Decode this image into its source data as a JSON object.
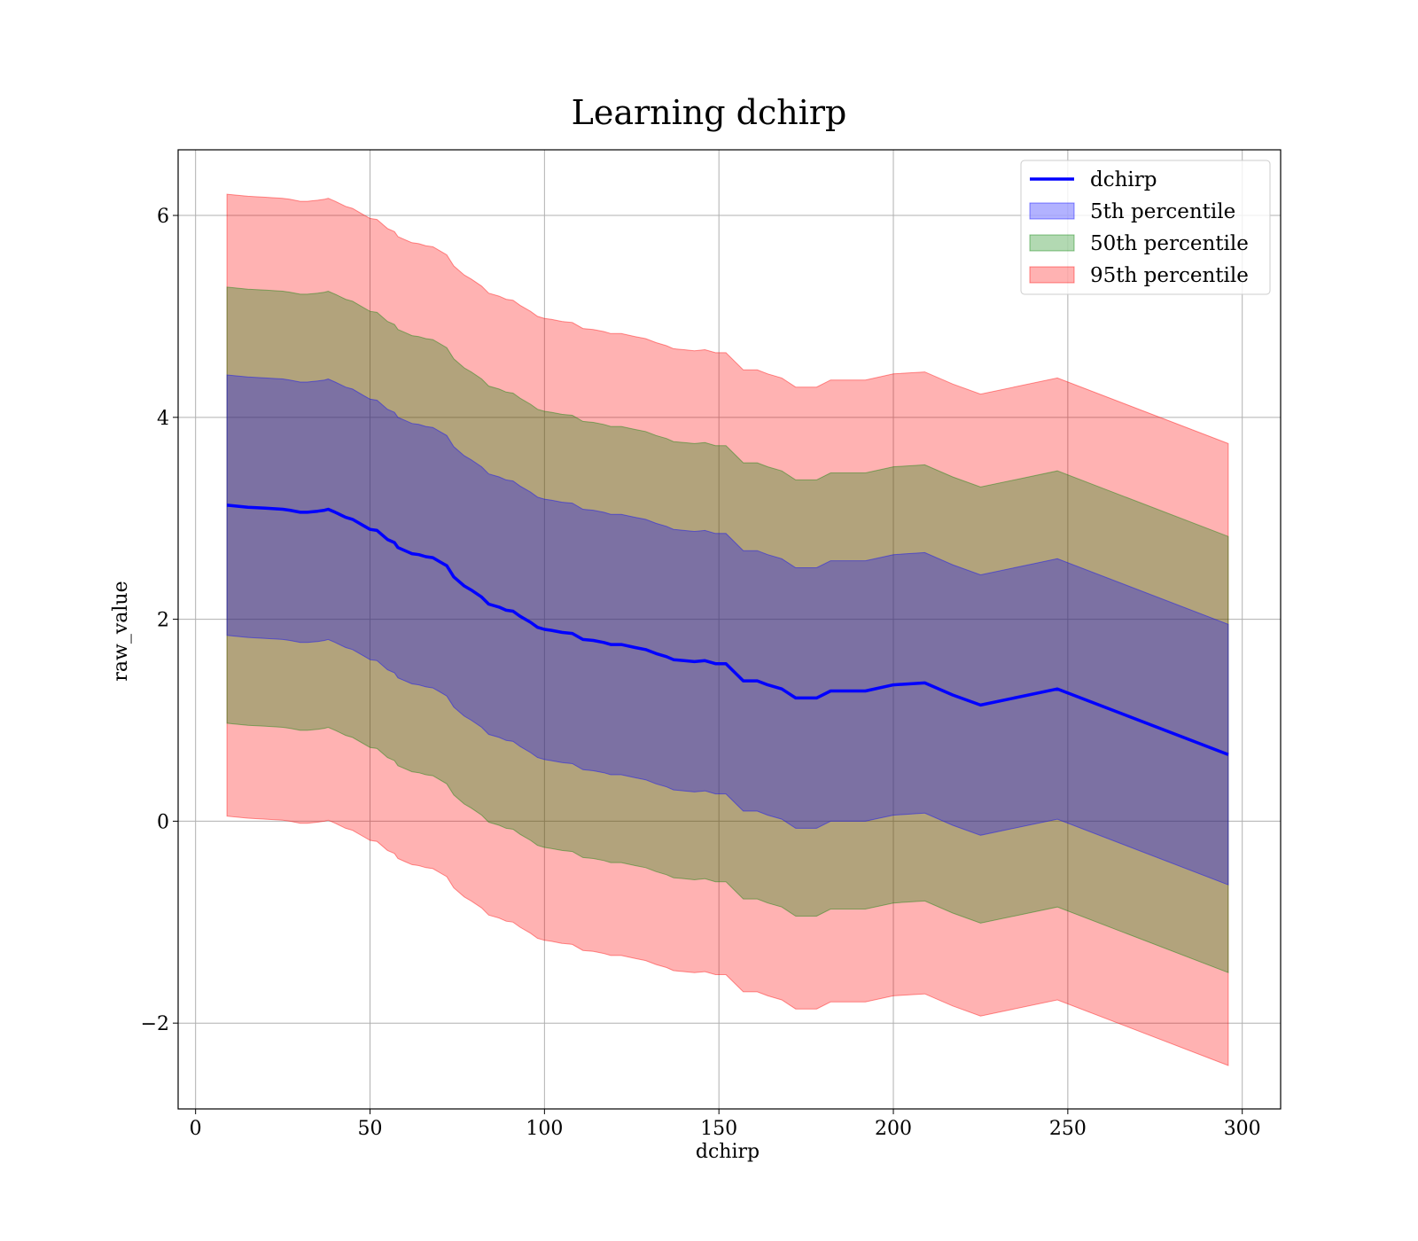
{
  "chart_data": {
    "type": "area",
    "title": "Learning dchirp",
    "xlabel": "dchirp",
    "ylabel": "raw_value",
    "xlim": [
      -5,
      311
    ],
    "ylim": [
      -2.85,
      6.65
    ],
    "x_ticks": [
      0,
      50,
      100,
      150,
      200,
      250,
      300
    ],
    "x_tick_labels": [
      "0",
      "50",
      "100",
      "150",
      "200",
      "250",
      "300"
    ],
    "y_ticks": [
      -2,
      0,
      2,
      4,
      6
    ],
    "y_tick_labels": [
      "−2",
      "0",
      "2",
      "4",
      "6"
    ],
    "grid": true,
    "legend": {
      "placement": "top-right",
      "entries": [
        {
          "label": "dchirp",
          "kind": "line",
          "color": "#0000ff"
        },
        {
          "label": "5th percentile",
          "kind": "patch",
          "color": "#0000ff"
        },
        {
          "label": "50th percentile",
          "kind": "patch",
          "color": "#008000"
        },
        {
          "label": "95th percentile",
          "kind": "patch",
          "color": "#ff0000"
        }
      ]
    },
    "x": [
      9,
      15,
      20,
      25,
      27,
      30,
      32,
      35,
      37,
      38,
      40,
      43,
      45,
      48,
      50,
      52,
      55,
      57,
      58,
      60,
      62,
      64,
      66,
      68,
      70,
      72,
      74,
      77,
      79,
      82,
      84,
      87,
      89,
      91,
      93,
      96,
      98,
      100,
      102,
      105,
      108,
      111,
      114,
      117,
      119,
      122,
      126,
      129,
      132,
      135,
      137,
      140,
      143,
      146,
      149,
      152,
      157,
      161,
      164,
      168,
      172,
      178,
      182,
      192,
      200,
      209,
      217,
      225,
      247,
      296
    ],
    "series": [
      {
        "name": "dchirp",
        "style": "line",
        "color": "#0000ff",
        "values": [
          3.13,
          3.11,
          3.1,
          3.09,
          3.08,
          3.06,
          3.06,
          3.07,
          3.08,
          3.09,
          3.06,
          3.01,
          2.99,
          2.93,
          2.89,
          2.88,
          2.79,
          2.76,
          2.71,
          2.68,
          2.65,
          2.64,
          2.62,
          2.61,
          2.57,
          2.53,
          2.42,
          2.33,
          2.29,
          2.22,
          2.15,
          2.12,
          2.09,
          2.08,
          2.03,
          1.97,
          1.92,
          1.9,
          1.89,
          1.87,
          1.86,
          1.8,
          1.79,
          1.77,
          1.75,
          1.75,
          1.72,
          1.7,
          1.66,
          1.63,
          1.6,
          1.59,
          1.58,
          1.59,
          1.56,
          1.56,
          1.39,
          1.39,
          1.35,
          1.31,
          1.22,
          1.22,
          1.29,
          1.29,
          1.35,
          1.37,
          1.25,
          1.15,
          1.31,
          0.66
        ]
      },
      {
        "name": "5th percentile",
        "style": "band",
        "color": "#0000ff",
        "opacity": 0.3,
        "half_width": 1.29
      },
      {
        "name": "50th percentile",
        "style": "band",
        "color": "#008000",
        "opacity": 0.3,
        "half_width": 2.16
      },
      {
        "name": "95th percentile",
        "style": "band",
        "color": "#ff0000",
        "opacity": 0.3,
        "half_width": 3.08
      }
    ]
  }
}
